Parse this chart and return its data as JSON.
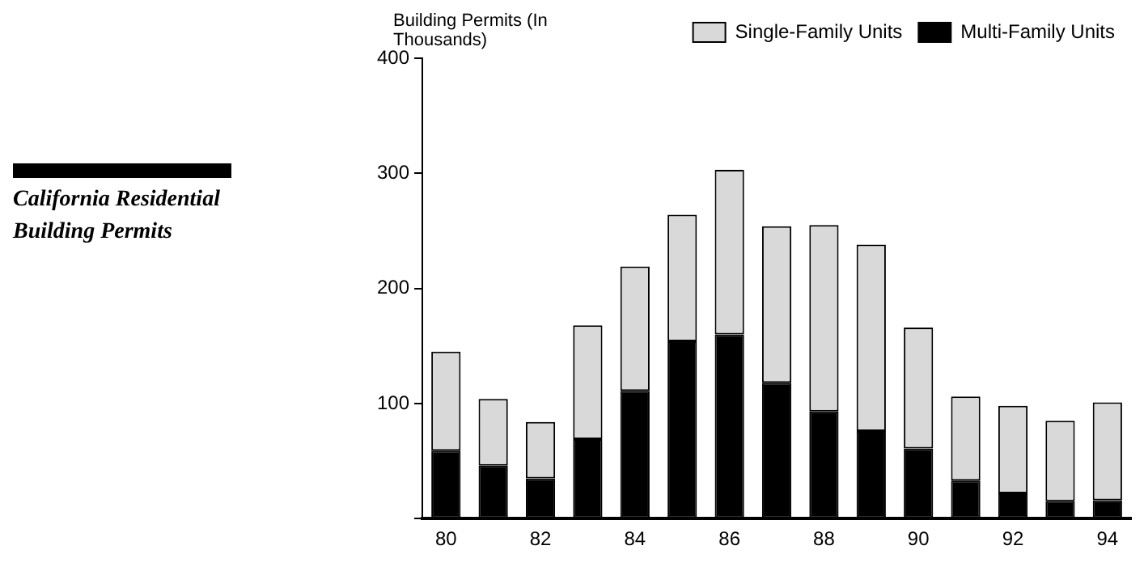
{
  "chart_data": {
    "type": "bar",
    "title": "California Residential Building Permits",
    "ylabel": "Building Permits (In Thousands)",
    "categories": [
      "80",
      null,
      "82",
      null,
      "84",
      null,
      "86",
      null,
      "88",
      null,
      "90",
      null,
      "92",
      null,
      "94"
    ],
    "stacked": true,
    "series": [
      {
        "name": "Multi-Family Units",
        "color": "#000000",
        "values": [
          59,
          46,
          35,
          69,
          111,
          154,
          160,
          118,
          93,
          76,
          61,
          33,
          22,
          15,
          16
        ]
      },
      {
        "name": "Single-Family Units",
        "color": "#d9d9d9",
        "values": [
          86,
          58,
          49,
          99,
          108,
          110,
          143,
          136,
          162,
          162,
          105,
          73,
          76,
          70,
          85
        ]
      }
    ],
    "ylim": [
      0,
      400
    ],
    "yticks": [
      {
        "value": 0,
        "label": null
      },
      100,
      200,
      300,
      400
    ],
    "grid": false,
    "legend": "top right"
  }
}
